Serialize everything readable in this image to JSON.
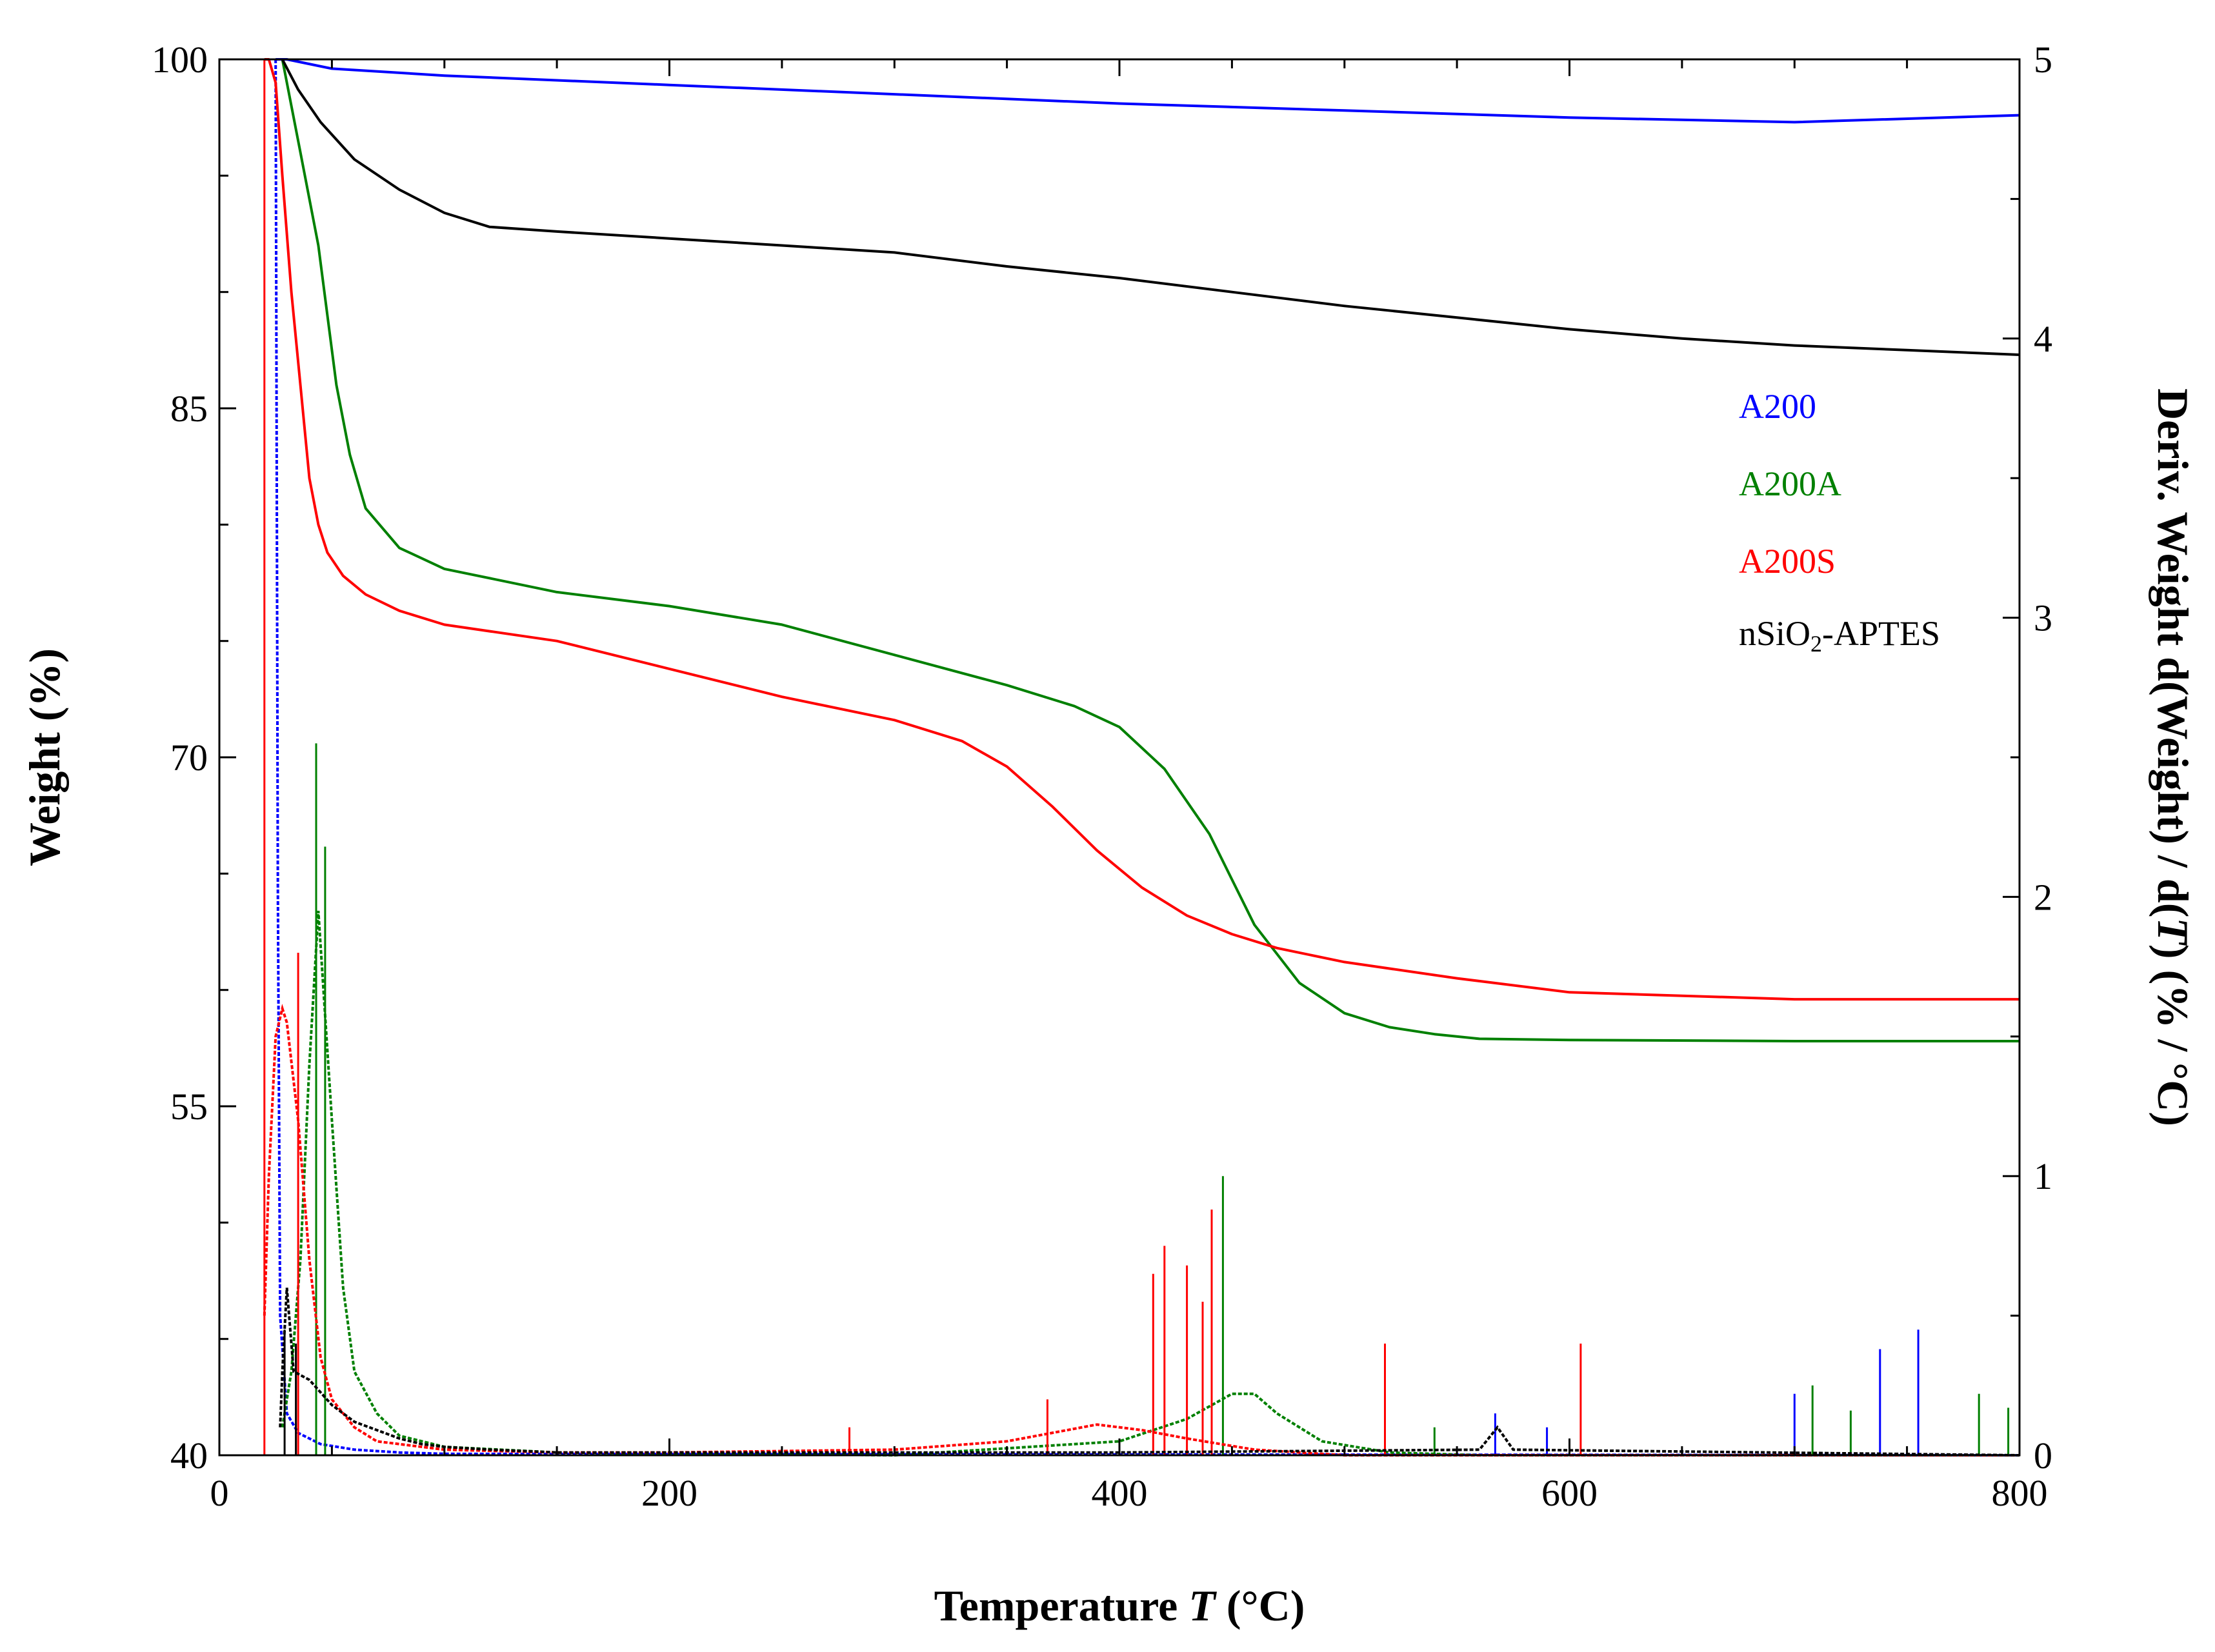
{
  "chart_data": {
    "type": "line",
    "xlabel": {
      "prefix": "Temperature ",
      "var": "T",
      "suffix": " (°C)"
    },
    "ylabel_left": "Weight (%)",
    "ylabel_right": {
      "prefix": "Deriv. Weight d(Weight) / d(",
      "var": "T",
      "suffix": ") (% / °C)"
    },
    "xlim": [
      0,
      800
    ],
    "ylim_left": [
      40,
      100
    ],
    "ylim_right": [
      0,
      5
    ],
    "x_ticks": [
      0,
      200,
      400,
      600,
      800
    ],
    "y_left_ticks": [
      40,
      55,
      70,
      85,
      100
    ],
    "y_right_ticks": [
      0,
      1,
      2,
      3,
      4,
      5
    ],
    "grid": false,
    "legend_position": "right",
    "legend": [
      {
        "label": "A200",
        "color": "#0000ff"
      },
      {
        "label": "A200A",
        "color": "#008000"
      },
      {
        "label": "A200S",
        "color": "#ff0000"
      },
      {
        "label_parts": [
          "nSiO",
          "2",
          "-APTES"
        ],
        "color": "#000000"
      }
    ],
    "weight_series": [
      {
        "name": "A200",
        "color": "#0000ff",
        "x": [
          25,
          30,
          50,
          100,
          200,
          300,
          400,
          500,
          600,
          700,
          800
        ],
        "y": [
          100,
          100,
          99.6,
          99.3,
          98.9,
          98.5,
          98.1,
          97.8,
          97.5,
          97.3,
          97.6
        ]
      },
      {
        "name": "A200A",
        "color": "#008000",
        "x": [
          28,
          32,
          36,
          40,
          44,
          48,
          52,
          58,
          65,
          80,
          100,
          150,
          200,
          250,
          300,
          350,
          380,
          400,
          420,
          440,
          460,
          480,
          500,
          520,
          540,
          560,
          600,
          700,
          800
        ],
        "y": [
          100,
          98,
          96,
          94,
          92,
          89,
          86,
          83,
          80.7,
          79.0,
          78.1,
          77.1,
          76.5,
          75.7,
          74.4,
          73.1,
          72.2,
          71.3,
          69.5,
          66.7,
          62.8,
          60.3,
          59.0,
          58.4,
          58.1,
          57.9,
          57.85,
          57.8,
          57.8
        ]
      },
      {
        "name": "A200S",
        "color": "#ff0000",
        "x": [
          20,
          22,
          25,
          28,
          32,
          36,
          40,
          44,
          48,
          55,
          65,
          80,
          100,
          150,
          200,
          250,
          300,
          330,
          350,
          370,
          390,
          410,
          430,
          450,
          470,
          500,
          550,
          600,
          700,
          800
        ],
        "y": [
          100,
          100,
          99,
          95,
          90,
          86,
          82,
          80,
          78.8,
          77.8,
          77.0,
          76.3,
          75.7,
          75.0,
          73.8,
          72.6,
          71.6,
          70.7,
          69.6,
          67.9,
          66.0,
          64.4,
          63.2,
          62.4,
          61.8,
          61.2,
          60.5,
          59.9,
          59.6,
          59.6
        ]
      },
      {
        "name": "nSiO2-APTES",
        "color": "#000000",
        "x": [
          28,
          35,
          45,
          60,
          80,
          100,
          120,
          150,
          200,
          250,
          300,
          350,
          400,
          450,
          500,
          550,
          600,
          650,
          700,
          750,
          800
        ],
        "y": [
          100,
          98.7,
          97.3,
          95.7,
          94.4,
          93.4,
          92.8,
          92.6,
          92.3,
          92.0,
          91.7,
          91.1,
          90.6,
          90.0,
          89.4,
          88.9,
          88.4,
          88.0,
          87.7,
          87.5,
          87.3
        ]
      }
    ],
    "derivative_series": [
      {
        "name": "A200",
        "color": "#0000ff",
        "x": [
          25,
          26,
          27,
          30,
          35,
          45,
          60,
          80,
          100,
          800
        ],
        "y": [
          5,
          2.0,
          0.5,
          0.15,
          0.08,
          0.04,
          0.02,
          0.01,
          0.005,
          0.0
        ],
        "spikes": [
          [
            700,
            0.22
          ],
          [
            738,
            0.38
          ],
          [
            755,
            0.45
          ],
          [
            590,
            0.1
          ],
          [
            567,
            0.15
          ]
        ]
      },
      {
        "name": "A200A",
        "color": "#008000",
        "x": [
          28,
          32,
          36,
          40,
          44,
          46,
          50,
          55,
          60,
          70,
          80,
          100,
          150,
          300,
          400,
          430,
          450,
          460,
          470,
          490,
          520,
          560,
          800
        ],
        "y": [
          0.1,
          0.3,
          0.7,
          1.4,
          1.95,
          1.7,
          1.2,
          0.6,
          0.3,
          0.15,
          0.07,
          0.03,
          0.01,
          0.0,
          0.05,
          0.13,
          0.22,
          0.22,
          0.15,
          0.05,
          0.01,
          0.0,
          0.0
        ],
        "spikes": [
          [
            43,
            2.55
          ],
          [
            47,
            2.18
          ],
          [
            446,
            1.0
          ],
          [
            540,
            0.1
          ],
          [
            708,
            0.25
          ],
          [
            725,
            0.16
          ],
          [
            782,
            0.22
          ],
          [
            795,
            0.17
          ]
        ]
      },
      {
        "name": "A200S",
        "color": "#ff0000",
        "x": [
          20,
          22,
          25,
          28,
          30,
          35,
          40,
          45,
          50,
          60,
          70,
          100,
          150,
          200,
          300,
          350,
          370,
          390,
          410,
          430,
          460,
          500,
          800
        ],
        "y": [
          0.5,
          1.0,
          1.5,
          1.6,
          1.55,
          1.2,
          0.7,
          0.35,
          0.2,
          0.1,
          0.05,
          0.02,
          0.01,
          0.01,
          0.02,
          0.05,
          0.08,
          0.11,
          0.09,
          0.06,
          0.02,
          0.0,
          0.0
        ],
        "spikes": [
          [
            20,
            5.0
          ],
          [
            35,
            1.8
          ],
          [
            280,
            0.1
          ],
          [
            368,
            0.2
          ],
          [
            415,
            0.65
          ],
          [
            420,
            0.75
          ],
          [
            430,
            0.68
          ],
          [
            437,
            0.55
          ],
          [
            441,
            0.88
          ],
          [
            518,
            0.4
          ],
          [
            605,
            0.4
          ]
        ]
      },
      {
        "name": "nSiO2-APTES",
        "color": "#000000",
        "x": [
          27,
          28,
          30,
          33,
          40,
          50,
          60,
          70,
          80,
          90,
          100,
          120,
          150,
          200,
          400,
          560,
          568,
          575,
          800
        ],
        "y": [
          0.1,
          0.3,
          0.6,
          0.3,
          0.27,
          0.18,
          0.12,
          0.09,
          0.06,
          0.04,
          0.03,
          0.02,
          0.01,
          0.01,
          0.01,
          0.02,
          0.1,
          0.02,
          0.0
        ],
        "spikes": [
          [
            29,
            0.45
          ],
          [
            34,
            0.4
          ]
        ]
      }
    ]
  }
}
